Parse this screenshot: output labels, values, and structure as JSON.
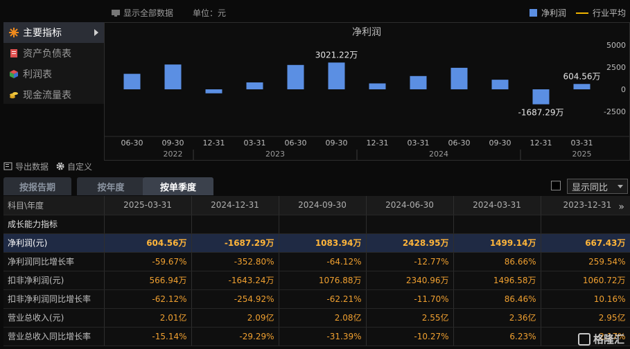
{
  "topbar": {
    "show_all": "显示全部数据",
    "unit": "单位：元",
    "legend_bar": "净利润",
    "legend_line": "行业平均"
  },
  "sidemenu": [
    {
      "label": "主要指标",
      "icon": "star-icon",
      "active": true
    },
    {
      "label": "资产负债表",
      "icon": "document-icon",
      "active": false
    },
    {
      "label": "利润表",
      "icon": "cube-icon",
      "active": false
    },
    {
      "label": "现金流量表",
      "icon": "coins-icon",
      "active": false
    }
  ],
  "chart_data": {
    "type": "bar",
    "title": "净利润",
    "categories": [
      "06-30",
      "09-30",
      "12-31",
      "03-31",
      "06-30",
      "09-30",
      "12-31",
      "03-31",
      "06-30",
      "09-30",
      "12-31",
      "03-31"
    ],
    "years": [
      {
        "label": "2022"
      },
      {
        "label": "2023"
      },
      {
        "label": "2024"
      },
      {
        "label": "2025"
      }
    ],
    "series": [
      {
        "name": "净利润",
        "values": [
          1750,
          2800,
          -450,
          780,
          2750,
          3021.22,
          667.43,
          1499.14,
          2428.95,
          1083.94,
          -1687.29,
          604.56
        ]
      }
    ],
    "annotations": [
      {
        "index": 5,
        "text": "3021.22万"
      },
      {
        "index": 10,
        "text": "-1687.29万"
      },
      {
        "index": 11,
        "text": "604.56万"
      }
    ],
    "yticks": [
      5000,
      2500,
      0,
      -2500
    ],
    "ylim": [
      -5000,
      5000
    ],
    "bar_color": "#5b8fe3"
  },
  "tools": {
    "export": "导出数据",
    "custom": "自定义"
  },
  "tabs": [
    {
      "label": "按报告期",
      "active": false
    },
    {
      "label": "按年度",
      "active": false
    },
    {
      "label": "按单季度",
      "active": true
    }
  ],
  "yoy_select": "显示同比",
  "table": {
    "header": [
      "科目\\年度",
      "2025-03-31",
      "2024-12-31",
      "2024-09-30",
      "2024-06-30",
      "2024-03-31",
      "2023-12-31"
    ],
    "section": "成长能力指标",
    "rows": [
      {
        "label": "净利润(元)",
        "values": [
          "604.56万",
          "-1687.29万",
          "1083.94万",
          "2428.95万",
          "1499.14万",
          "667.43万"
        ],
        "highlight": true
      },
      {
        "label": "净利润同比增长率",
        "values": [
          "-59.67%",
          "-352.80%",
          "-64.12%",
          "-12.77%",
          "86.66%",
          "259.54%"
        ]
      },
      {
        "label": "扣非净利润(元)",
        "values": [
          "566.94万",
          "-1643.24万",
          "1076.88万",
          "2340.96万",
          "1496.58万",
          "1060.72万"
        ]
      },
      {
        "label": "扣非净利润同比增长率",
        "values": [
          "-62.12%",
          "-254.92%",
          "-62.21%",
          "-11.70%",
          "86.46%",
          "10.16%"
        ]
      },
      {
        "label": "营业总收入(元)",
        "values": [
          "2.01亿",
          "2.09亿",
          "2.08亿",
          "2.55亿",
          "2.36亿",
          "2.95亿"
        ]
      },
      {
        "label": "营业总收入同比增长率",
        "values": [
          "-15.14%",
          "-29.29%",
          "-31.39%",
          "-10.27%",
          "6.23%",
          "-2.17%"
        ]
      }
    ]
  },
  "watermark": "格隆汇"
}
